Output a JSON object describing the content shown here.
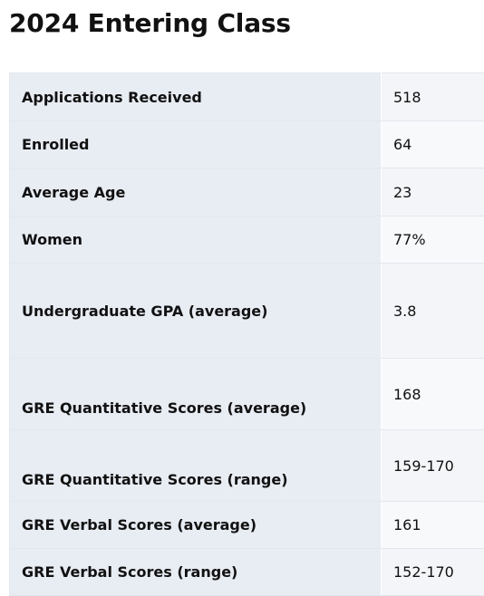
{
  "page": {
    "title": "2024 Entering Class"
  },
  "stats": {
    "rows": [
      {
        "label": "Applications Received",
        "value": "518"
      },
      {
        "label": "Enrolled",
        "value": "64"
      },
      {
        "label": "Average Age",
        "value": "23"
      },
      {
        "label": "Women",
        "value": "77%"
      },
      {
        "label": "Undergraduate GPA (average)",
        "value": "3.8"
      },
      {
        "label": "GRE Quantitative Scores (average)",
        "value": "168"
      },
      {
        "label": "GRE Quantitative Scores (range)",
        "value": "159-170"
      },
      {
        "label": "GRE Verbal Scores (average)",
        "value": "161"
      },
      {
        "label": "GRE Verbal Scores (range)",
        "value": "152-170"
      }
    ]
  }
}
